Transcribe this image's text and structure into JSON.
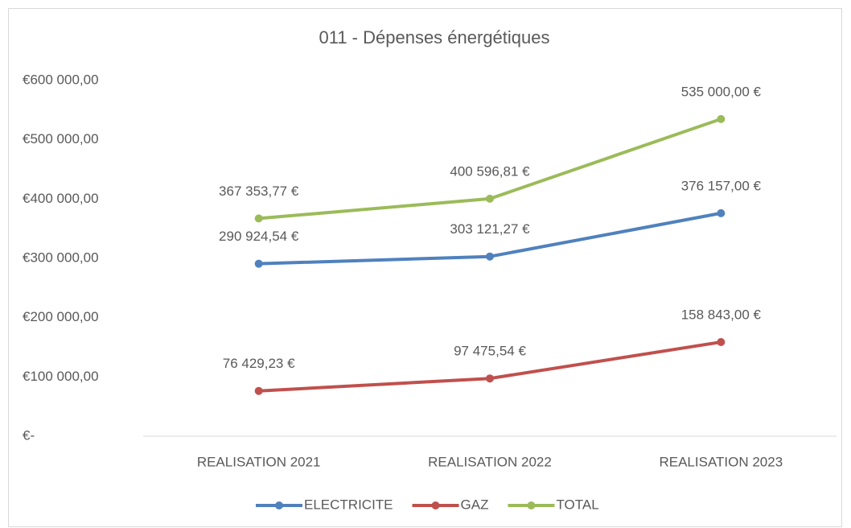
{
  "chart_data": {
    "type": "line",
    "title": "011 - Dépenses énergétiques",
    "categories": [
      "REALISATION 2021",
      "REALISATION 2022",
      "REALISATION 2023"
    ],
    "series": [
      {
        "name": "ELECTRICITE",
        "color": "#4f81bd",
        "values": [
          290924.54,
          303121.27,
          376157
        ],
        "value_labels": [
          "290 924,54 €",
          "303 121,27 €",
          "376 157,00 €"
        ]
      },
      {
        "name": "GAZ",
        "color": "#c0504d",
        "values": [
          76429.23,
          97475.54,
          158843
        ],
        "value_labels": [
          "76 429,23 €",
          "97 475,54 €",
          "158 843,00 €"
        ]
      },
      {
        "name": "TOTAL",
        "color": "#9bbb59",
        "values": [
          367353.77,
          400596.81,
          535000
        ],
        "value_labels": [
          "367 353,77 €",
          "400 596,81 €",
          "535 000,00 €"
        ]
      }
    ],
    "ylim": [
      0,
      600000
    ],
    "yticks": [
      {
        "value": 0,
        "label": "€-"
      },
      {
        "value": 100000,
        "label": "€100 000,00"
      },
      {
        "value": 200000,
        "label": "€200 000,00"
      },
      {
        "value": 300000,
        "label": "€300 000,00"
      },
      {
        "value": 400000,
        "label": "€400 000,00"
      },
      {
        "value": 500000,
        "label": "€500 000,00"
      },
      {
        "value": 600000,
        "label": "€600 000,00"
      }
    ],
    "legend": "bottom"
  }
}
